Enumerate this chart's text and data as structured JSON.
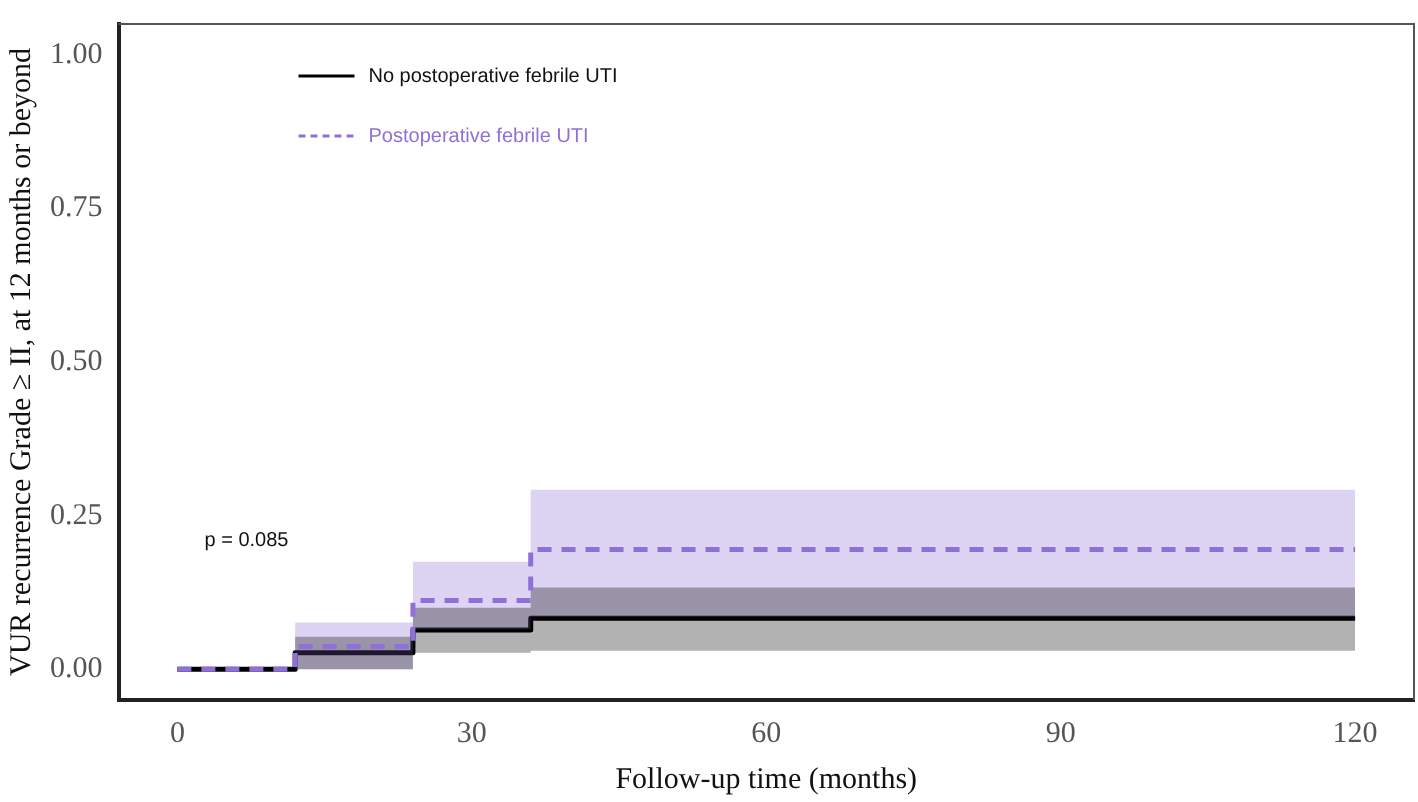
{
  "chart_data": {
    "type": "step",
    "xlabel": "Follow-up time (months)",
    "ylabel": "VUR recurrence Grade ≥ II, at 12 months or beyond",
    "x": [
      0,
      12,
      24,
      36,
      120
    ],
    "xlim": [
      -6,
      126
    ],
    "xticks": [
      0,
      30,
      60,
      90,
      120
    ],
    "ylim": [
      -0.05,
      1.05
    ],
    "yticks": [
      {
        "value": 0,
        "label": "0.00"
      },
      {
        "value": 0.25,
        "label": "0.25"
      },
      {
        "value": 0.5,
        "label": "0.50"
      },
      {
        "value": 0.75,
        "label": "0.75"
      },
      {
        "value": 1,
        "label": "1.00"
      }
    ],
    "grid": false,
    "legend": "top left",
    "series": [
      {
        "name": "No postoperative febrile UTI",
        "color": "#000000",
        "line_style": "solid",
        "values": [
          0,
          0.027,
          0.064,
          0.083,
          0.083
        ],
        "lower": [
          0,
          0,
          0.027,
          0.03,
          0.03
        ],
        "upper": [
          0,
          0.053,
          0.1,
          0.133,
          0.133
        ]
      },
      {
        "name": "Postoperative febrile UTI",
        "color": "#8f70d8",
        "line_style": "dashed",
        "values": [
          0,
          0.037,
          0.112,
          0.195,
          0.195
        ],
        "lower": [
          0,
          0,
          0.065,
          0.085,
          0.085
        ],
        "upper": [
          0,
          0.076,
          0.175,
          0.292,
          0.292
        ]
      }
    ],
    "annotations": [
      "p = 0.085"
    ]
  }
}
